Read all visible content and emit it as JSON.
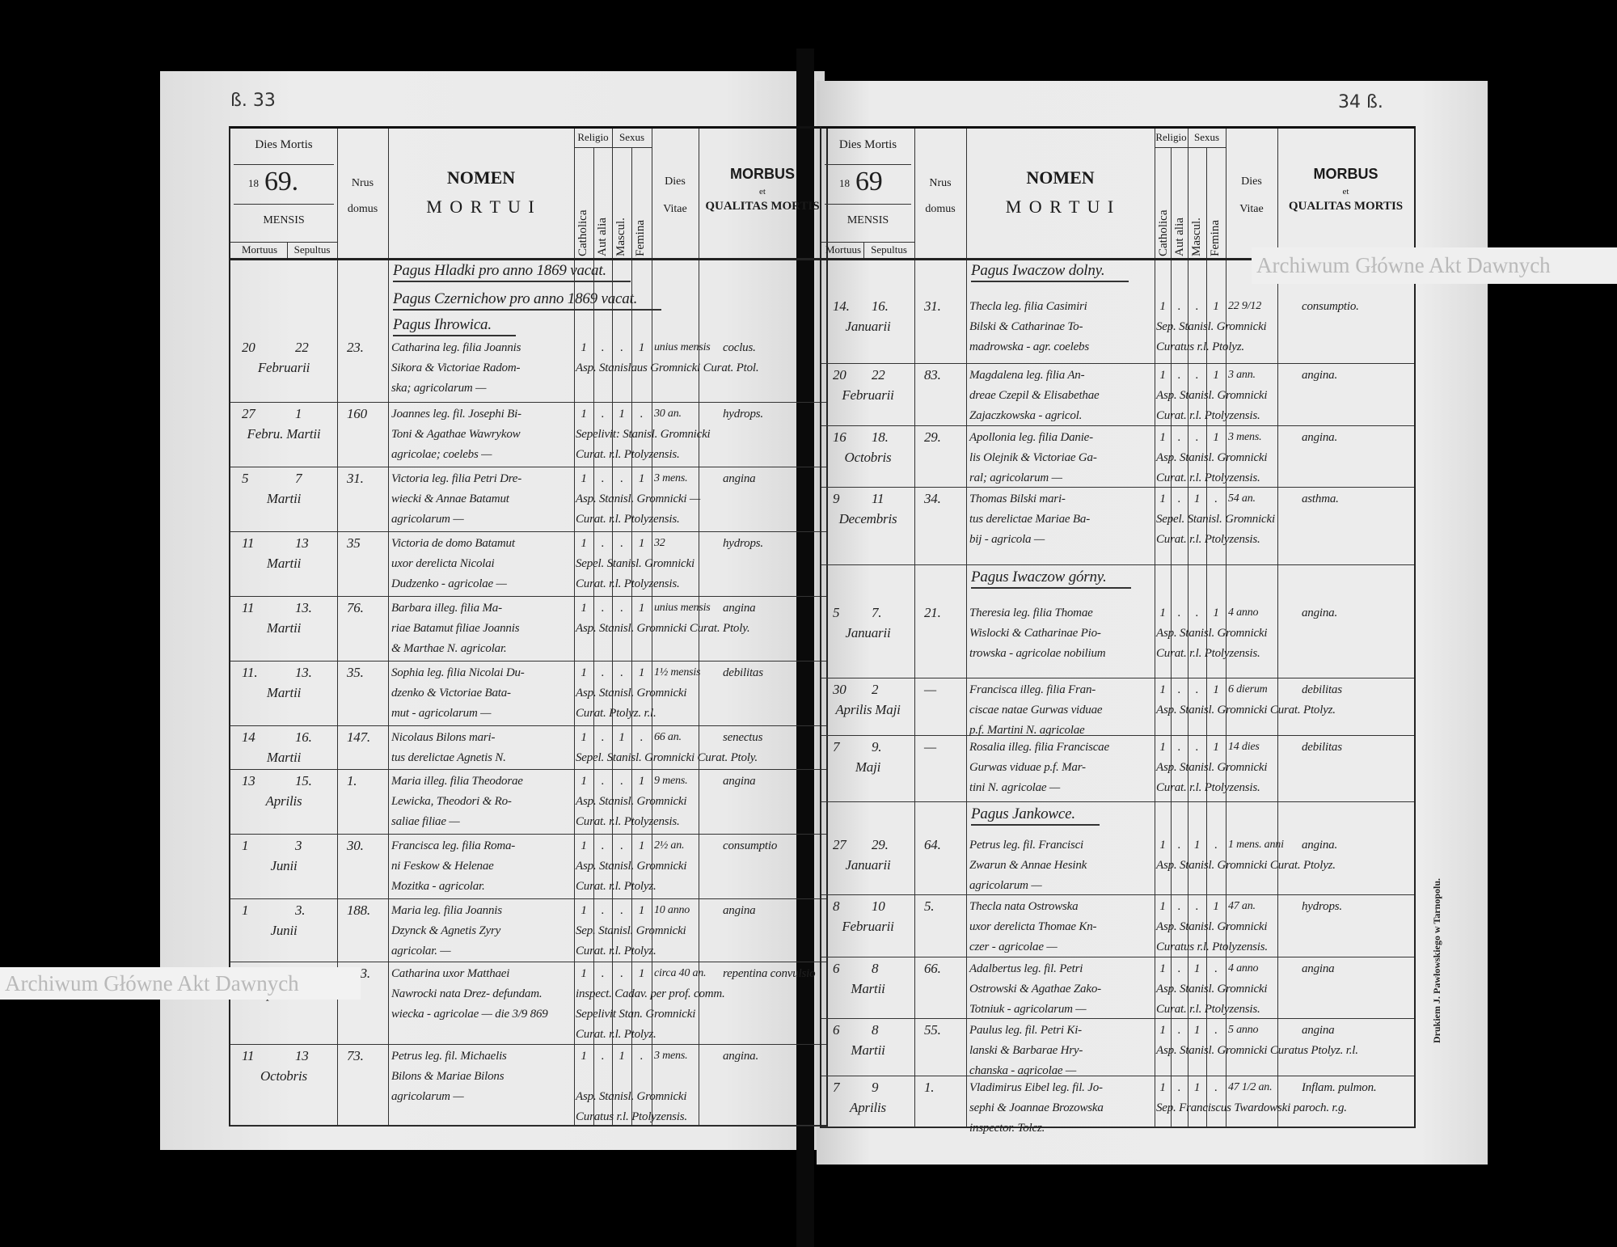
{
  "watermark": "Archiwum Główne Akt Dawnych",
  "printer_note": "Drukiem J. Pawłowskiego w Tarnopolu.",
  "pages": {
    "left": {
      "page_number": "ß. 33",
      "year_hand": "69."
    },
    "right": {
      "page_number": "34 ß.",
      "year_hand": "69"
    }
  },
  "header": {
    "dies_mortis": "Dies Mortis",
    "year_prefix": "18",
    "mensis": "MENSIS",
    "mortuus": "Mortuus",
    "sepultus": "Sepultus",
    "nrus": "Nrus",
    "domus": "domus",
    "nomen": "NOMEN",
    "mortui": "M O R T U I",
    "religio": "Religio",
    "catholica": "Catholica",
    "aut_alia": "Aut alia",
    "sexus": "Sexus",
    "mascul": "Mascul.",
    "femina": "Femina",
    "dies": "Dies",
    "vitae": "Vitae",
    "morbus": "MORBUS",
    "et": "et",
    "qualitas": "QUALITAS MORTIS"
  },
  "left_items": [
    {
      "type": "section",
      "text": "Pagus Hladki pro anno 1869 vacat."
    },
    {
      "type": "section",
      "text": "Pagus Czernichow pro anno 1869 vacat."
    },
    {
      "type": "section",
      "text": "Pagus Ihrowica."
    },
    {
      "type": "entry",
      "mortuus": "20",
      "sepultus": "22",
      "mensis": "Februarii",
      "nrus": "23.",
      "nomen": [
        "Catharina leg. filia Joannis",
        "Sikora & Victoriae Radom-",
        "ska; agricolarum —"
      ],
      "catholica": "1",
      "aut_alia": ".",
      "mascul": ".",
      "femina": "1",
      "vitae": "unius mensis",
      "morbus": "coclus.",
      "sepultor": [
        "Asp. Stanislaus Gromnicki Curat. Ptol."
      ]
    },
    {
      "type": "entry",
      "mortuus": "27",
      "sepultus": "1",
      "mensis": "Febru. Martii",
      "nrus": "160",
      "nomen": [
        "Joannes leg. fil. Josephi Bi-",
        "Toni & Agathae Wawrykow",
        "agricolae; coelebs —"
      ],
      "catholica": "1",
      "aut_alia": ".",
      "mascul": "1",
      "femina": ".",
      "vitae": "30 an.",
      "morbus": "hydrops.",
      "sepultor": [
        "Sepelivit: Stanisl. Gromnicki",
        "Curat. r.l. Ptolyzensis."
      ]
    },
    {
      "type": "entry",
      "mortuus": "5",
      "sepultus": "7",
      "mensis": "Martii",
      "nrus": "31.",
      "nomen": [
        "Victoria leg. filia Petri Dre-",
        "wiecki & Annae Batamut",
        "agricolarum —"
      ],
      "catholica": "1",
      "aut_alia": ".",
      "mascul": ".",
      "femina": "1",
      "vitae": "3 mens.",
      "morbus": "angina",
      "sepultor": [
        "Asp. Stanisl. Gromnicki —",
        "Curat. r.l. Ptolyzensis."
      ]
    },
    {
      "type": "entry",
      "mortuus": "11",
      "sepultus": "13",
      "mensis": "Martii",
      "nrus": "35",
      "nomen": [
        "Victoria de domo Batamut",
        "uxor derelicta Nicolai",
        "Dudzenko - agricolae —"
      ],
      "catholica": "1",
      "aut_alia": ".",
      "mascul": ".",
      "femina": "1",
      "vitae": "32",
      "morbus": "hydrops.",
      "sepultor": [
        "Sepel. Stanisl. Gromnicki",
        "Curat. r.l. Ptolyzensis."
      ]
    },
    {
      "type": "entry",
      "mortuus": "11",
      "sepultus": "13.",
      "mensis": "Martii",
      "nrus": "76.",
      "nomen": [
        "Barbara illeg. filia Ma-",
        "riae Batamut filiae Joannis",
        "& Marthae N. agricolar."
      ],
      "catholica": "1",
      "aut_alia": ".",
      "mascul": ".",
      "femina": "1",
      "vitae": "unius mensis",
      "morbus": "angina",
      "sepultor": [
        "Asp. Stanisl. Gromnicki Curat. Ptoly."
      ]
    },
    {
      "type": "entry",
      "mortuus": "11.",
      "sepultus": "13.",
      "mensis": "Martii",
      "nrus": "35.",
      "nomen": [
        "Sophia leg. filia Nicolai Du-",
        "dzenko & Victoriae Bata-",
        "mut - agricolarum —"
      ],
      "catholica": "1",
      "aut_alia": ".",
      "mascul": ".",
      "femina": "1",
      "vitae": "1½ mensis",
      "morbus": "debilitas",
      "sepultor": [
        "Asp. Stanisl. Gromnicki",
        "Curat. Ptolyz. r.l."
      ]
    },
    {
      "type": "entry",
      "mortuus": "14",
      "sepultus": "16.",
      "mensis": "Martii",
      "nrus": "147.",
      "nomen": [
        "Nicolaus Bilons mari-",
        "tus derelictae Agnetis N."
      ],
      "catholica": "1",
      "aut_alia": ".",
      "mascul": "1",
      "femina": ".",
      "vitae": "66 an.",
      "morbus": "senectus",
      "sepultor": [
        "Sepel. Stanisl. Gromnicki Curat. Ptoly."
      ]
    },
    {
      "type": "entry",
      "mortuus": "13",
      "sepultus": "15.",
      "mensis": "Aprilis",
      "nrus": "1.",
      "nomen": [
        "Maria illeg. filia Theodorae",
        "Lewicka, Theodori & Ro-",
        "saliae filiae —"
      ],
      "catholica": "1",
      "aut_alia": ".",
      "mascul": ".",
      "femina": "1",
      "vitae": "9 mens.",
      "morbus": "angina",
      "sepultor": [
        "Asp. Stanisl. Gromnicki",
        "Curat. r.l. Ptolyzensis."
      ]
    },
    {
      "type": "entry",
      "mortuus": "1",
      "sepultus": "3",
      "mensis": "Junii",
      "nrus": "30.",
      "nomen": [
        "Francisca leg. filia Roma-",
        "ni Feskow & Helenae",
        "Mozitka - agricolar."
      ],
      "catholica": "1",
      "aut_alia": ".",
      "mascul": ".",
      "femina": "1",
      "vitae": "2½ an.",
      "morbus": "consumptio",
      "sepultor": [
        "Asp. Stanisl. Gromnicki",
        "Curat. r.l. Ptolyz."
      ]
    },
    {
      "type": "entry",
      "mortuus": "1",
      "sepultus": "3.",
      "mensis": "Junii",
      "nrus": "188.",
      "nomen": [
        "Maria leg. filia Joannis",
        "Dzynck & Agnetis Zyry",
        "agricolar. —"
      ],
      "catholica": "1",
      "aut_alia": ".",
      "mascul": ".",
      "femina": "1",
      "vitae": "10 anno",
      "morbus": "angina",
      "sepultor": [
        "Sep. Stanisl. Gromnicki",
        "Curat. r.l. Ptolyz."
      ]
    },
    {
      "type": "entry",
      "mortuus": "3",
      "sepultus": "5",
      "mensis": "Septembris",
      "nrus": "103.",
      "nomen": [
        "Catharina uxor Matthaei",
        "Nawrocki nata Drez- defundam.",
        "wiecka - agricolae — die 3/9 869"
      ],
      "catholica": "1",
      "aut_alia": ".",
      "mascul": ".",
      "femina": "1",
      "vitae": "circa 40 an.",
      "morbus": "repentina convulsio",
      "sepultor": [
        "inspect. Cadav. per prof. comm.",
        "Sepelivit Stan. Gromnicki",
        "Curat. r.l. Ptolyz."
      ]
    },
    {
      "type": "entry",
      "mortuus": "11",
      "sepultus": "13",
      "mensis": "Octobris",
      "nrus": "73.",
      "nomen": [
        "Petrus leg. fil. Michaelis",
        "Bilons & Mariae Bilons",
        "agricolarum —"
      ],
      "catholica": "1",
      "aut_alia": ".",
      "mascul": "1",
      "femina": ".",
      "vitae": "3 mens.",
      "morbus": "angina.",
      "sepultor": [
        "",
        "Asp. Stanisl. Gromnicki",
        "Curatus r.l. Ptolyzensis."
      ]
    }
  ],
  "right_items": [
    {
      "type": "section",
      "text": "Pagus Iwaczow dolny."
    },
    {
      "type": "entry",
      "mortuus": "14.",
      "sepultus": "16.",
      "mensis": "Januarii",
      "nrus": "31.",
      "nomen": [
        "Thecla leg. filia Casimiri",
        "Bilski & Catharinae To-",
        "madrowska - agr. coelebs"
      ],
      "catholica": "1",
      "aut_alia": ".",
      "mascul": ".",
      "femina": "1",
      "vitae": "22 9/12",
      "morbus": "consumptio.",
      "sepultor": [
        "Sep. Stanisl. Gromnicki",
        "Curatus r.l. Ptolyz."
      ]
    },
    {
      "type": "entry",
      "mortuus": "20",
      "sepultus": "22",
      "mensis": "Februarii",
      "nrus": "83.",
      "nomen": [
        "Magdalena leg. filia An-",
        "dreae Czepil & Elisabethae",
        "Zajaczkowska - agricol."
      ],
      "catholica": "1",
      "aut_alia": ".",
      "mascul": ".",
      "femina": "1",
      "vitae": "3 ann.",
      "morbus": "angina.",
      "sepultor": [
        "Asp. Stanisl. Gromnicki",
        "Curat. r.l. Ptolyzensis."
      ]
    },
    {
      "type": "entry",
      "mortuus": "16",
      "sepultus": "18.",
      "mensis": "Octobris",
      "nrus": "29.",
      "nomen": [
        "Apollonia leg. filia Danie-",
        "lis Olejnik & Victoriae Ga-",
        "ral; agricolarum —"
      ],
      "catholica": "1",
      "aut_alia": ".",
      "mascul": ".",
      "femina": "1",
      "vitae": "3 mens.",
      "morbus": "angina.",
      "sepultor": [
        "Asp. Stanisl. Gromnicki",
        "Curat. r.l. Ptolyzensis."
      ]
    },
    {
      "type": "entry",
      "mortuus": "9",
      "sepultus": "11",
      "mensis": "Decembris",
      "nrus": "34.",
      "nomen": [
        "Thomas Bilski mari-",
        "tus derelictae Mariae Ba-",
        "bij - agricola —"
      ],
      "catholica": "1",
      "aut_alia": ".",
      "mascul": "1",
      "femina": ".",
      "vitae": "54 an.",
      "morbus": "asthma.",
      "sepultor": [
        "Sepel. Stanisl. Gromnicki",
        "Curat. r.l. Ptolyzensis."
      ]
    },
    {
      "type": "section",
      "text": "Pagus Iwaczow górny."
    },
    {
      "type": "entry",
      "mortuus": "5",
      "sepultus": "7.",
      "mensis": "Januarii",
      "nrus": "21.",
      "nomen": [
        "Theresia leg. filia Thomae",
        "Wislocki & Catharinae Pio-",
        "trowska - agricolae nobilium"
      ],
      "catholica": "1",
      "aut_alia": ".",
      "mascul": ".",
      "femina": "1",
      "vitae": "4 anno",
      "morbus": "angina.",
      "sepultor": [
        "Asp. Stanisl. Gromnicki",
        "Curat. r.l. Ptolyzensis."
      ]
    },
    {
      "type": "entry",
      "mortuus": "30",
      "sepultus": "2",
      "mensis": "Aprilis Maji",
      "nrus": "—",
      "nomen": [
        "Francisca illeg. filia Fran-",
        "ciscae natae Gurwas viduae",
        "p.f. Martini N. agricolae"
      ],
      "catholica": "1",
      "aut_alia": ".",
      "mascul": ".",
      "femina": "1",
      "vitae": "6 dierum",
      "morbus": "debilitas",
      "sepultor": [
        "Asp. Stanisl. Gromnicki Curat. Ptolyz."
      ]
    },
    {
      "type": "entry",
      "mortuus": "7",
      "sepultus": "9.",
      "mensis": "Maji",
      "nrus": "—",
      "nomen": [
        "Rosalia illeg. filia Franciscae",
        "Gurwas viduae p.f. Mar-",
        "tini N. agricolae —"
      ],
      "catholica": "1",
      "aut_alia": ".",
      "mascul": ".",
      "femina": "1",
      "vitae": "14 dies",
      "morbus": "debilitas",
      "sepultor": [
        "Asp. Stanisl. Gromnicki",
        "Curat. r.l. Ptolyzensis."
      ]
    },
    {
      "type": "section",
      "text": "Pagus Jankowce."
    },
    {
      "type": "entry",
      "mortuus": "27",
      "sepultus": "29.",
      "mensis": "Januarii",
      "nrus": "64.",
      "nomen": [
        "Petrus leg. fil. Francisci",
        "Zwarun & Annae Hesink",
        "agricolarum —"
      ],
      "catholica": "1",
      "aut_alia": ".",
      "mascul": "1",
      "femina": ".",
      "vitae": "1 mens. anni",
      "morbus": "angina.",
      "sepultor": [
        "Asp. Stanisl. Gromnicki Curat. Ptolyz."
      ]
    },
    {
      "type": "entry",
      "mortuus": "8",
      "sepultus": "10",
      "mensis": "Februarii",
      "nrus": "5.",
      "nomen": [
        "Thecla nata Ostrowska",
        "uxor derelicta Thomae Kn-",
        "czer - agricolae —"
      ],
      "catholica": "1",
      "aut_alia": ".",
      "mascul": ".",
      "femina": "1",
      "vitae": "47 an.",
      "morbus": "hydrops.",
      "sepultor": [
        "Asp. Stanisl. Gromnicki",
        "Curatus r.l. Ptolyzensis."
      ]
    },
    {
      "type": "entry",
      "mortuus": "6",
      "sepultus": "8",
      "mensis": "Martii",
      "nrus": "66.",
      "nomen": [
        "Adalbertus leg. fil. Petri",
        "Ostrowski & Agathae Zako-",
        "Totniuk - agricolarum —"
      ],
      "catholica": "1",
      "aut_alia": ".",
      "mascul": "1",
      "femina": ".",
      "vitae": "4 anno",
      "morbus": "angina",
      "sepultor": [
        "Asp. Stanisl. Gromnicki",
        "Curat. r.l. Ptolyzensis."
      ]
    },
    {
      "type": "entry",
      "mortuus": "6",
      "sepultus": "8",
      "mensis": "Martii",
      "nrus": "55.",
      "nomen": [
        "Paulus leg. fil. Petri Ki-",
        "lanski & Barbarae Hry-",
        "chanska - agricolae —"
      ],
      "catholica": "1",
      "aut_alia": ".",
      "mascul": "1",
      "femina": ".",
      "vitae": "5 anno",
      "morbus": "angina",
      "sepultor": [
        "Asp. Stanisl. Gromnicki Curatus Ptolyz. r.l."
      ]
    },
    {
      "type": "entry",
      "mortuus": "7",
      "sepultus": "9",
      "mensis": "Aprilis",
      "nrus": "1.",
      "nomen": [
        "Vladimirus Eibel leg. fil. Jo-",
        "sephi & Joannae Brozowska",
        "inspector. Tolcz."
      ],
      "catholica": "1",
      "aut_alia": ".",
      "mascul": "1",
      "femina": ".",
      "vitae": "47 1/2 an.",
      "morbus": "Inflam. pulmon.",
      "sepultor": [
        "Sep. Franciscus Twardowski paroch. r.g."
      ]
    }
  ]
}
